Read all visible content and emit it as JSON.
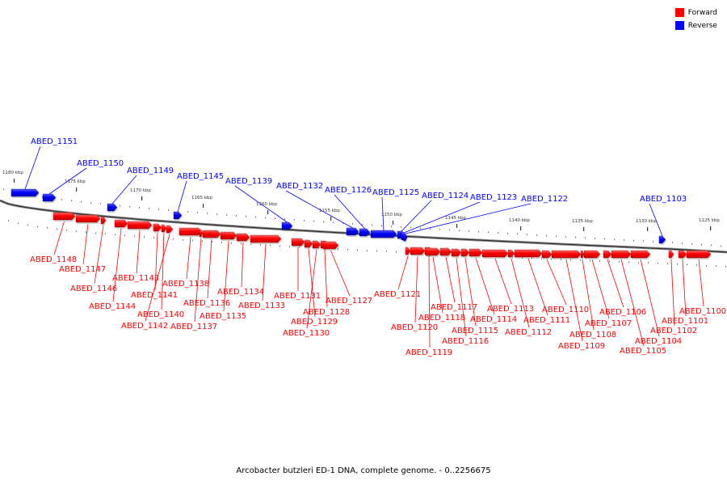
{
  "legend": {
    "forward_label": "Forward",
    "reverse_label": "Reverse",
    "forward_color": "#ff0000",
    "reverse_color": "#0000ff"
  },
  "caption": "Arcobacter butzleri ED-1 DNA, complete genome. - 0..2256675",
  "axis": {
    "ticks": [
      "1180 kbp",
      "1175 kbp",
      "1170 kbp",
      "1165 kbp",
      "1160 kbp",
      "1155 kbp",
      "1150 kbp",
      "1145 kbp",
      "1140 kbp",
      "1135 kbp",
      "1130 kbp",
      "1125 kbp"
    ]
  },
  "genes": [
    {
      "name": "ABED_1151",
      "strand": "reverse"
    },
    {
      "name": "ABED_1150",
      "strand": "reverse"
    },
    {
      "name": "ABED_1149",
      "strand": "reverse"
    },
    {
      "name": "ABED_1145",
      "strand": "reverse"
    },
    {
      "name": "ABED_1139",
      "strand": "reverse"
    },
    {
      "name": "ABED_1132",
      "strand": "reverse"
    },
    {
      "name": "ABED_1126",
      "strand": "reverse"
    },
    {
      "name": "ABED_1125",
      "strand": "reverse"
    },
    {
      "name": "ABED_1124",
      "strand": "reverse"
    },
    {
      "name": "ABED_1123",
      "strand": "reverse"
    },
    {
      "name": "ABED_1122",
      "strand": "reverse"
    },
    {
      "name": "ABED_1103",
      "strand": "reverse"
    },
    {
      "name": "ABED_1148",
      "strand": "forward"
    },
    {
      "name": "ABED_1147",
      "strand": "forward"
    },
    {
      "name": "ABED_1146",
      "strand": "forward"
    },
    {
      "name": "ABED_1144",
      "strand": "forward"
    },
    {
      "name": "ABED_1143",
      "strand": "forward"
    },
    {
      "name": "ABED_1141",
      "strand": "forward"
    },
    {
      "name": "ABED_1140",
      "strand": "forward"
    },
    {
      "name": "ABED_1142",
      "strand": "forward"
    },
    {
      "name": "ABED_1138",
      "strand": "forward"
    },
    {
      "name": "ABED_1136",
      "strand": "forward"
    },
    {
      "name": "ABED_1137",
      "strand": "forward"
    },
    {
      "name": "ABED_1135",
      "strand": "forward"
    },
    {
      "name": "ABED_1134",
      "strand": "forward"
    },
    {
      "name": "ABED_1133",
      "strand": "forward"
    },
    {
      "name": "ABED_1131",
      "strand": "forward"
    },
    {
      "name": "ABED_1129",
      "strand": "forward"
    },
    {
      "name": "ABED_1130",
      "strand": "forward"
    },
    {
      "name": "ABED_1128",
      "strand": "forward"
    },
    {
      "name": "ABED_1127",
      "strand": "forward"
    },
    {
      "name": "ABED_1121",
      "strand": "forward"
    },
    {
      "name": "ABED_1120",
      "strand": "forward"
    },
    {
      "name": "ABED_1119",
      "strand": "forward"
    },
    {
      "name": "ABED_1118",
      "strand": "forward"
    },
    {
      "name": "ABED_1117",
      "strand": "forward"
    },
    {
      "name": "ABED_1116",
      "strand": "forward"
    },
    {
      "name": "ABED_1115",
      "strand": "forward"
    },
    {
      "name": "ABED_1114",
      "strand": "forward"
    },
    {
      "name": "ABED_1113",
      "strand": "forward"
    },
    {
      "name": "ABED_1112",
      "strand": "forward"
    },
    {
      "name": "ABED_1111",
      "strand": "forward"
    },
    {
      "name": "ABED_1110",
      "strand": "forward"
    },
    {
      "name": "ABED_1109",
      "strand": "forward"
    },
    {
      "name": "ABED_1108",
      "strand": "forward"
    },
    {
      "name": "ABED_1107",
      "strand": "forward"
    },
    {
      "name": "ABED_1106",
      "strand": "forward"
    },
    {
      "name": "ABED_1105",
      "strand": "forward"
    },
    {
      "name": "ABED_1104",
      "strand": "forward"
    },
    {
      "name": "ABED_1102",
      "strand": "forward"
    },
    {
      "name": "ABED_1101",
      "strand": "forward"
    },
    {
      "name": "ABED_1100",
      "strand": "forward"
    }
  ]
}
